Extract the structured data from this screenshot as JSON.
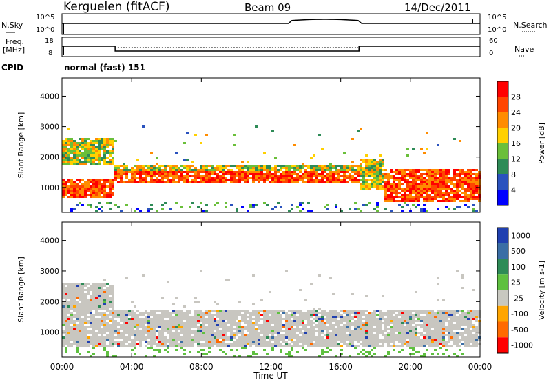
{
  "header": {
    "station": "Kerguelen (fitACF)",
    "beam": "Beam 09",
    "date": "14/Dec/2011"
  },
  "panels": {
    "nsky_label": "N.Sky",
    "nsearch_label": "N.Search",
    "freq_label_top": "Freq.",
    "freq_label_bottom": "[MHz]",
    "nave_label": "Nave",
    "cpid_label": "CPID",
    "cpid_value": "normal (fast) 151",
    "noise_ticks": [
      "10^5",
      "10^0"
    ],
    "freq_ticks": [
      "18",
      "8"
    ],
    "nave_ticks": [
      "60",
      "0"
    ]
  },
  "colors": {
    "power_scale": [
      "#0000ff",
      "#2a52be",
      "#2e8b57",
      "#6abf3a",
      "#ffd000",
      "#ff8c00",
      "#ff4500",
      "#ff0000"
    ],
    "velocity_scale": [
      "#2040b0",
      "#3a6ea5",
      "#2e8b57",
      "#5fc040",
      "#c8c8c0",
      "#ffa500",
      "#ff6a00",
      "#ff0000"
    ],
    "ground_scatter": "#c8c6c0"
  },
  "chart_data": [
    {
      "type": "heatmap",
      "title": "Power",
      "xlabel": "Time UT",
      "ylabel": "Slant Range [km]",
      "x_ticks": [
        "00:00",
        "04:00",
        "08:00",
        "12:00",
        "16:00",
        "20:00",
        "00:00"
      ],
      "y_ticks": [
        "1000",
        "2000",
        "3000",
        "4000"
      ],
      "ylim": [
        180,
        4600
      ],
      "colorbar_label": "Power [dB]",
      "colorbar_ticks": [
        "4",
        "8",
        "12",
        "16",
        "20",
        "24",
        "28"
      ],
      "colorbar_range": [
        0,
        32
      ],
      "bands": [
        {
          "x0": 0.0,
          "x1": 3.0,
          "y0": 600,
          "y1": 1250,
          "level": "high"
        },
        {
          "x0": 3.0,
          "x1": 17.0,
          "y0": 1100,
          "y1": 1500,
          "level": "high"
        },
        {
          "x0": 3.0,
          "x1": 17.0,
          "y0": 1500,
          "y1": 1700,
          "level": "mid"
        },
        {
          "x0": 0.0,
          "x1": 3.0,
          "y0": 1700,
          "y1": 2600,
          "level": "mid"
        },
        {
          "x0": 18.5,
          "x1": 24.0,
          "y0": 500,
          "y1": 1600,
          "level": "high"
        },
        {
          "x0": 17.0,
          "x1": 18.5,
          "y0": 900,
          "y1": 1900,
          "level": "mid"
        }
      ]
    },
    {
      "type": "heatmap",
      "title": "Velocity",
      "xlabel": "Time UT",
      "ylabel": "Slant Range [km]",
      "x_ticks": [
        "00:00",
        "04:00",
        "08:00",
        "12:00",
        "16:00",
        "20:00",
        "00:00"
      ],
      "y_ticks": [
        "1000",
        "2000",
        "3000",
        "4000"
      ],
      "ylim": [
        180,
        4600
      ],
      "colorbar_label": "Velocity [m s-1]",
      "colorbar_ticks": [
        "1000",
        "500",
        "100",
        "25",
        "-25",
        "-100",
        "-500",
        "-1000"
      ],
      "bands": [
        {
          "x0": 0.0,
          "x1": 24.0,
          "y0": 500,
          "y1": 1700,
          "level": "ground"
        },
        {
          "x0": 0.0,
          "x1": 3.0,
          "y0": 1700,
          "y1": 2600,
          "level": "ground"
        },
        {
          "x0": 17.0,
          "x1": 18.5,
          "y0": 800,
          "y1": 1600,
          "level": "negative"
        }
      ]
    }
  ]
}
